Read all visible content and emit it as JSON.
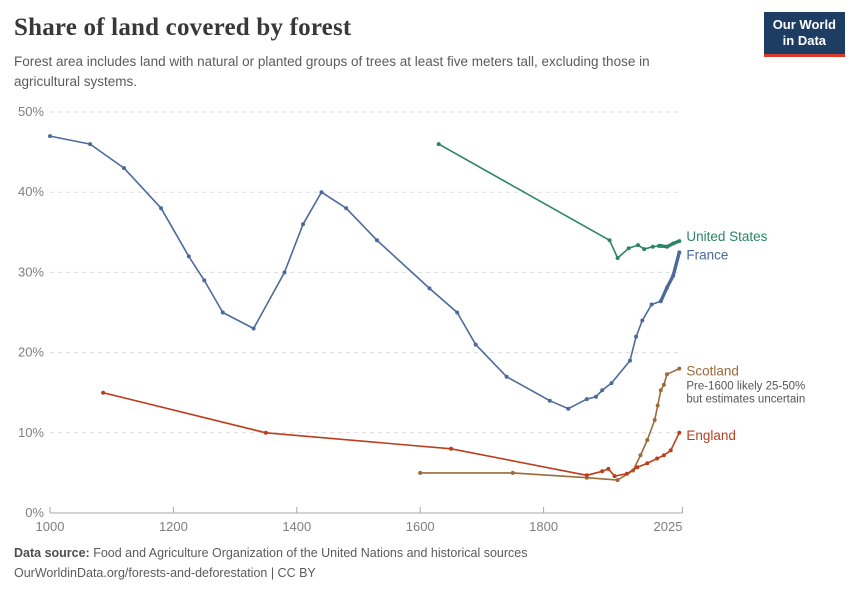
{
  "header": {
    "title": "Share of land covered by forest",
    "subtitle": "Forest area includes land with natural or planted groups of trees at least five meters tall, excluding those in agricultural systems.",
    "logo": {
      "line1": "Our World",
      "line2": "in Data",
      "bg_color": "#1d3d63",
      "accent_color": "#d93a2b"
    }
  },
  "chart_data": {
    "type": "line",
    "title": "Share of land covered by forest",
    "xlabel": "",
    "ylabel": "Share of land covered by forest (%)",
    "xlim": [
      1000,
      2025
    ],
    "ylim": [
      0,
      50
    ],
    "x_ticks": [
      1000,
      1200,
      1400,
      1600,
      1800,
      2025
    ],
    "y_ticks": [
      0,
      10,
      20,
      30,
      40,
      50
    ],
    "y_tick_format": "percent",
    "grid": "horizontal-dashed",
    "legend_position": "right-of-line-ends",
    "series": [
      {
        "name": "United States",
        "color": "#2c8465",
        "bold_from": 1990,
        "label_dy": -4,
        "points": [
          [
            1630,
            46
          ],
          [
            1907,
            34
          ],
          [
            1920,
            31.8
          ],
          [
            1938,
            33
          ],
          [
            1953,
            33.4
          ],
          [
            1963,
            32.9
          ],
          [
            1977,
            33.2
          ],
          [
            1987,
            33.3
          ],
          [
            1990,
            33.3
          ],
          [
            2000,
            33.2
          ],
          [
            2010,
            33.6
          ],
          [
            2020,
            33.9
          ]
        ]
      },
      {
        "name": "France",
        "color": "#4c6a9c",
        "bold_from": 1990,
        "label_dy": 3,
        "points": [
          [
            1000,
            47
          ],
          [
            1065,
            46
          ],
          [
            1120,
            43
          ],
          [
            1180,
            38
          ],
          [
            1225,
            32
          ],
          [
            1250,
            29
          ],
          [
            1280,
            25
          ],
          [
            1330,
            23
          ],
          [
            1380,
            30
          ],
          [
            1410,
            36
          ],
          [
            1440,
            40
          ],
          [
            1480,
            38
          ],
          [
            1530,
            34
          ],
          [
            1615,
            28
          ],
          [
            1660,
            25
          ],
          [
            1690,
            21
          ],
          [
            1740,
            17
          ],
          [
            1810,
            14
          ],
          [
            1840,
            13
          ],
          [
            1870,
            14.2
          ],
          [
            1885,
            14.5
          ],
          [
            1895,
            15.3
          ],
          [
            1910,
            16.2
          ],
          [
            1940,
            19
          ],
          [
            1950,
            22
          ],
          [
            1960,
            24
          ],
          [
            1975,
            26
          ],
          [
            1990,
            26.4
          ],
          [
            2000,
            28.1
          ],
          [
            2010,
            29.6
          ],
          [
            2020,
            32.5
          ]
        ]
      },
      {
        "name": "Scotland",
        "color": "#9c6b39",
        "label_dy": 3,
        "annotation": [
          "Pre-1600 likely 25-50%",
          "but estimates uncertain"
        ],
        "points": [
          [
            1600,
            5
          ],
          [
            1750,
            5
          ],
          [
            1870,
            4.4
          ],
          [
            1920,
            4.1
          ],
          [
            1945,
            5.3
          ],
          [
            1957,
            7.2
          ],
          [
            1968,
            9.1
          ],
          [
            1980,
            11.6
          ],
          [
            1985,
            13.4
          ],
          [
            1990,
            15.3
          ],
          [
            1995,
            16
          ],
          [
            2000,
            17.3
          ],
          [
            2020,
            18
          ]
        ]
      },
      {
        "name": "England",
        "color": "#bc3e1d",
        "label_dy": 3,
        "points": [
          [
            1086,
            15
          ],
          [
            1350,
            10
          ],
          [
            1650,
            8
          ],
          [
            1870,
            4.7
          ],
          [
            1895,
            5.2
          ],
          [
            1905,
            5.5
          ],
          [
            1915,
            4.6
          ],
          [
            1935,
            4.9
          ],
          [
            1952,
            5.7
          ],
          [
            1968,
            6.2
          ],
          [
            1984,
            6.8
          ],
          [
            1995,
            7.2
          ],
          [
            2006,
            7.8
          ],
          [
            2020,
            10
          ]
        ]
      }
    ]
  },
  "footer": {
    "source_label": "Data source:",
    "source_text": " Food and Agriculture Organization of the United Nations and historical sources",
    "link_text": "OurWorldinData.org/forests-and-deforestation | CC BY"
  }
}
